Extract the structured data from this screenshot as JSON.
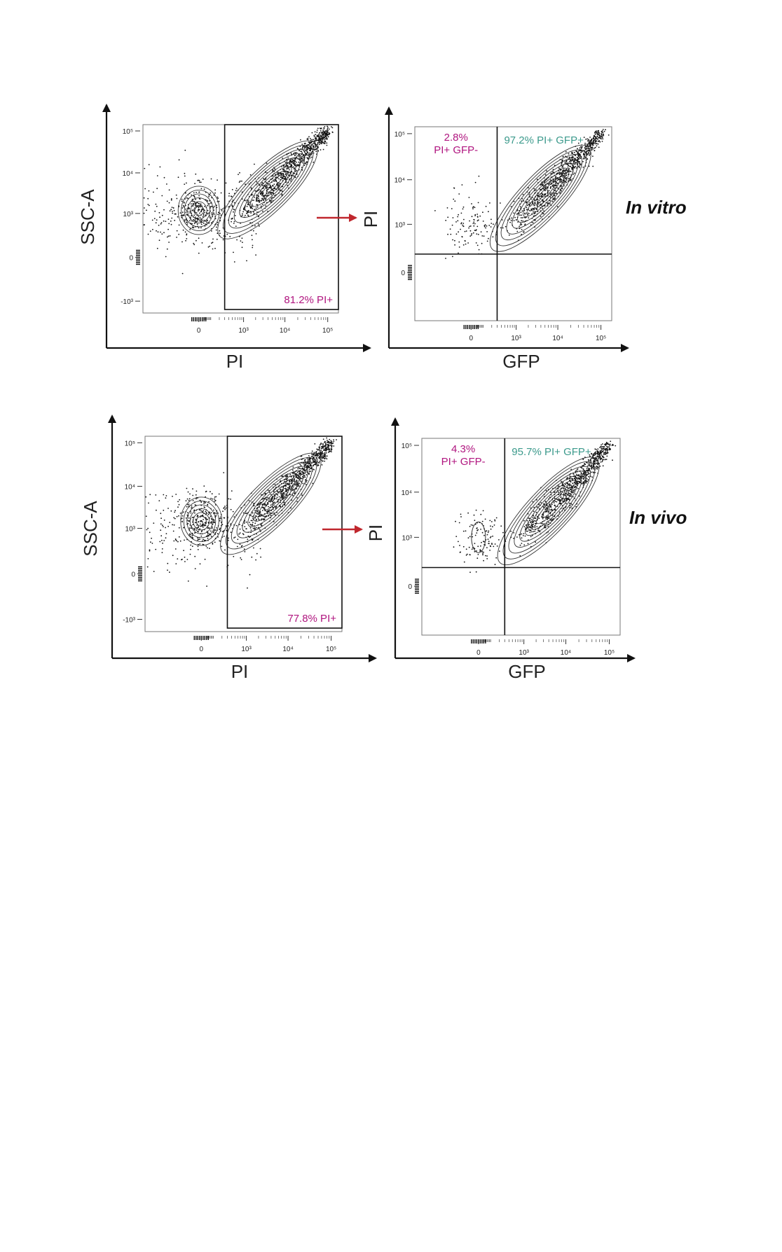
{
  "colors": {
    "gate_label": "#b0157f",
    "double_positive_label": "#3c9a8c",
    "gating_arrow": "#c0272d",
    "axis": "#111111",
    "contour": "#333333"
  },
  "conditions": [
    "In vitro",
    "In vivo"
  ],
  "chart_data": [
    {
      "type": "scatter",
      "subtype": "flow-cytometry-contour",
      "row": "In vitro",
      "xlabel": "PI",
      "ylabel": "SSC-A",
      "x_ticks": [
        "0",
        "10³",
        "10⁴",
        "10⁵"
      ],
      "y_ticks": [
        "10⁵",
        "10⁴",
        "10³",
        "0",
        "-10³"
      ],
      "x_scale": "biexponential",
      "y_scale": "biexponential",
      "gates": [
        {
          "label": "81.2% PI+",
          "percent": 81.2,
          "x_min": 300
        }
      ],
      "populations": [
        {
          "name": "",
          "x_center": 0,
          "y_center": 1200
        },
        {
          "name": "",
          "x_from": 1000,
          "y_from": 1000,
          "x_to": 100000,
          "y_to": 100000
        }
      ]
    },
    {
      "type": "scatter",
      "subtype": "flow-cytometry-contour",
      "row": "In vitro",
      "xlabel": "GFP",
      "ylabel": "PI",
      "x_ticks": [
        "0",
        "10³",
        "10⁴",
        "10⁵"
      ],
      "y_ticks": [
        "10⁵",
        "10⁴",
        "10³",
        "0"
      ],
      "x_scale": "biexponential",
      "y_scale": "biexponential",
      "quadrants": [
        {
          "label_lines": [
            "2.8%",
            "PI+ GFP-"
          ],
          "percent": 2.8,
          "quadrant": "top-left"
        },
        {
          "label_lines": [
            "97.2% PI+ GFP+"
          ],
          "percent": 97.2,
          "quadrant": "top-right"
        }
      ],
      "threshold": {
        "x": 300,
        "y": 150
      }
    },
    {
      "type": "scatter",
      "subtype": "flow-cytometry-contour",
      "row": "In vivo",
      "xlabel": "PI",
      "ylabel": "SSC-A",
      "x_ticks": [
        "0",
        "10³",
        "10⁴",
        "10⁵"
      ],
      "y_ticks": [
        "10⁵",
        "10⁴",
        "10³",
        "0",
        "-10³"
      ],
      "x_scale": "biexponential",
      "y_scale": "biexponential",
      "gates": [
        {
          "label": "77.8% PI+",
          "percent": 77.8,
          "x_min": 300
        }
      ],
      "populations": [
        {
          "name": "",
          "x_center": 0,
          "y_center": 1500
        },
        {
          "name": "",
          "x_from": 1000,
          "y_from": 1000,
          "x_to": 100000,
          "y_to": 100000
        }
      ]
    },
    {
      "type": "scatter",
      "subtype": "flow-cytometry-contour",
      "row": "In vivo",
      "xlabel": "GFP",
      "ylabel": "PI",
      "x_ticks": [
        "0",
        "10³",
        "10⁴",
        "10⁵"
      ],
      "y_ticks": [
        "10⁵",
        "10⁴",
        "10³",
        "0"
      ],
      "x_scale": "biexponential",
      "y_scale": "biexponential",
      "quadrants": [
        {
          "label_lines": [
            "4.3%",
            "PI+ GFP-"
          ],
          "percent": 4.3,
          "quadrant": "top-left"
        },
        {
          "label_lines": [
            "95.7% PI+ GFP+"
          ],
          "percent": 95.7,
          "quadrant": "top-right"
        }
      ],
      "threshold": {
        "x": 300,
        "y": 150
      }
    }
  ]
}
